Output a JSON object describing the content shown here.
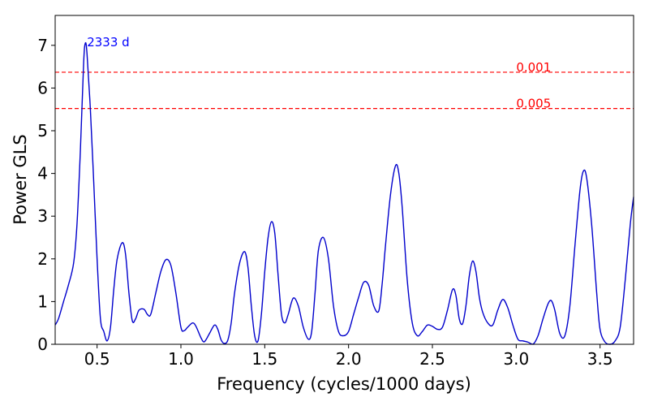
{
  "chart_data": {
    "type": "line",
    "title": "",
    "xlabel": "Frequency (cycles/1000 days)",
    "ylabel": "Power GLS",
    "xlim": [
      0.25,
      3.7
    ],
    "ylim": [
      0,
      7.7
    ],
    "xticks": [
      0.5,
      1.0,
      1.5,
      2.0,
      2.5,
      3.0,
      3.5
    ],
    "xtick_labels": [
      "0.5",
      "1.0",
      "1.5",
      "2.0",
      "2.5",
      "3.0",
      "3.5"
    ],
    "yticks": [
      0,
      1,
      2,
      3,
      4,
      5,
      6,
      7
    ],
    "ytick_labels": [
      "0",
      "1",
      "2",
      "3",
      "4",
      "5",
      "6",
      "7"
    ],
    "grid": false,
    "series": [
      {
        "name": "GLS periodogram",
        "color": "#0000cc",
        "x": [
          0.25,
          0.27,
          0.3,
          0.33,
          0.36,
          0.38,
          0.4,
          0.42,
          0.43,
          0.44,
          0.46,
          0.48,
          0.5,
          0.52,
          0.54,
          0.56,
          0.58,
          0.6,
          0.62,
          0.65,
          0.67,
          0.69,
          0.71,
          0.73,
          0.75,
          0.78,
          0.8,
          0.82,
          0.85,
          0.88,
          0.91,
          0.94,
          0.97,
          1.0,
          1.02,
          1.04,
          1.07,
          1.09,
          1.12,
          1.14,
          1.17,
          1.2,
          1.22,
          1.24,
          1.26,
          1.28,
          1.3,
          1.32,
          1.35,
          1.38,
          1.4,
          1.42,
          1.44,
          1.46,
          1.48,
          1.5,
          1.52,
          1.54,
          1.56,
          1.58,
          1.6,
          1.62,
          1.64,
          1.67,
          1.7,
          1.73,
          1.76,
          1.78,
          1.8,
          1.82,
          1.85,
          1.88,
          1.91,
          1.94,
          1.97,
          2.0,
          2.03,
          2.06,
          2.09,
          2.12,
          2.15,
          2.18,
          2.2,
          2.22,
          2.25,
          2.28,
          2.3,
          2.32,
          2.35,
          2.38,
          2.41,
          2.44,
          2.47,
          2.5,
          2.53,
          2.56,
          2.59,
          2.62,
          2.64,
          2.66,
          2.68,
          2.7,
          2.72,
          2.74,
          2.76,
          2.78,
          2.8,
          2.83,
          2.86,
          2.89,
          2.92,
          2.95,
          2.98,
          3.01,
          3.04,
          3.07,
          3.1,
          3.13,
          3.16,
          3.19,
          3.21,
          3.23,
          3.26,
          3.29,
          3.32,
          3.35,
          3.38,
          3.4,
          3.42,
          3.45,
          3.48,
          3.5,
          3.53,
          3.56,
          3.59,
          3.62,
          3.65,
          3.68,
          3.7
        ],
        "y": [
          0.45,
          0.6,
          1.0,
          1.4,
          1.9,
          2.8,
          4.5,
          6.6,
          7.05,
          6.8,
          5.5,
          3.8,
          2.0,
          0.6,
          0.3,
          0.08,
          0.4,
          1.3,
          2.0,
          2.38,
          2.1,
          1.2,
          0.55,
          0.6,
          0.8,
          0.82,
          0.7,
          0.7,
          1.2,
          1.7,
          1.98,
          1.85,
          1.2,
          0.4,
          0.32,
          0.4,
          0.5,
          0.42,
          0.15,
          0.06,
          0.25,
          0.45,
          0.35,
          0.1,
          0.02,
          0.1,
          0.5,
          1.2,
          1.9,
          2.17,
          1.8,
          0.9,
          0.2,
          0.08,
          0.7,
          1.7,
          2.5,
          2.87,
          2.6,
          1.6,
          0.7,
          0.5,
          0.7,
          1.08,
          0.9,
          0.4,
          0.12,
          0.3,
          1.2,
          2.2,
          2.5,
          2.0,
          0.9,
          0.3,
          0.2,
          0.3,
          0.7,
          1.1,
          1.45,
          1.38,
          0.9,
          0.78,
          1.4,
          2.3,
          3.5,
          4.18,
          4.0,
          3.2,
          1.5,
          0.5,
          0.2,
          0.3,
          0.45,
          0.42,
          0.35,
          0.4,
          0.8,
          1.28,
          1.15,
          0.6,
          0.48,
          0.9,
          1.6,
          1.95,
          1.7,
          1.1,
          0.75,
          0.5,
          0.45,
          0.8,
          1.05,
          0.85,
          0.45,
          0.12,
          0.08,
          0.05,
          0.0,
          0.2,
          0.6,
          0.95,
          1.02,
          0.8,
          0.25,
          0.2,
          0.9,
          2.3,
          3.6,
          4.05,
          3.9,
          2.8,
          1.2,
          0.35,
          0.05,
          0.0,
          0.08,
          0.4,
          1.5,
          2.8,
          3.45
        ]
      }
    ],
    "hlines": [
      {
        "y": 6.37,
        "label": "0.001",
        "color": "#ff0000",
        "style": "dashed"
      },
      {
        "y": 5.52,
        "label": "0.005",
        "color": "#ff0000",
        "style": "dashed"
      }
    ],
    "annotations": [
      {
        "text": "2333 d",
        "x": 0.43,
        "y": 7.05,
        "color": "#0000ff"
      }
    ]
  }
}
